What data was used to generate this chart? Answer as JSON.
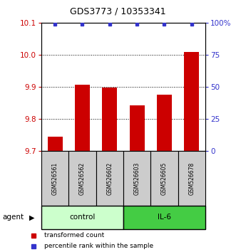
{
  "title": "GDS3773 / 10353341",
  "categories": [
    "GSM526561",
    "GSM526562",
    "GSM526602",
    "GSM526603",
    "GSM526605",
    "GSM526678"
  ],
  "bar_values": [
    9.745,
    9.908,
    9.897,
    9.843,
    9.876,
    10.008
  ],
  "percentile_values": [
    99,
    99,
    99,
    99,
    99,
    99
  ],
  "bar_color": "#cc0000",
  "percentile_color": "#3333cc",
  "ylim_left": [
    9.7,
    10.1
  ],
  "ylim_right": [
    0,
    100
  ],
  "yticks_left": [
    9.7,
    9.8,
    9.9,
    10.0,
    10.1
  ],
  "yticks_right": [
    0,
    25,
    50,
    75,
    100
  ],
  "ytick_labels_right": [
    "0",
    "25",
    "50",
    "75",
    "100%"
  ],
  "grid_values": [
    9.8,
    9.9,
    10.0
  ],
  "control_color": "#ccffcc",
  "il6_color": "#44cc44",
  "control_label": "control",
  "il6_label": "IL-6",
  "agent_label": "agent",
  "legend_bar_label": "transformed count",
  "legend_pct_label": "percentile rank within the sample",
  "bar_width": 0.55,
  "left_tick_color": "#cc0000",
  "right_tick_color": "#3333cc",
  "label_bg_color": "#cccccc",
  "fig_bg": "#ffffff"
}
